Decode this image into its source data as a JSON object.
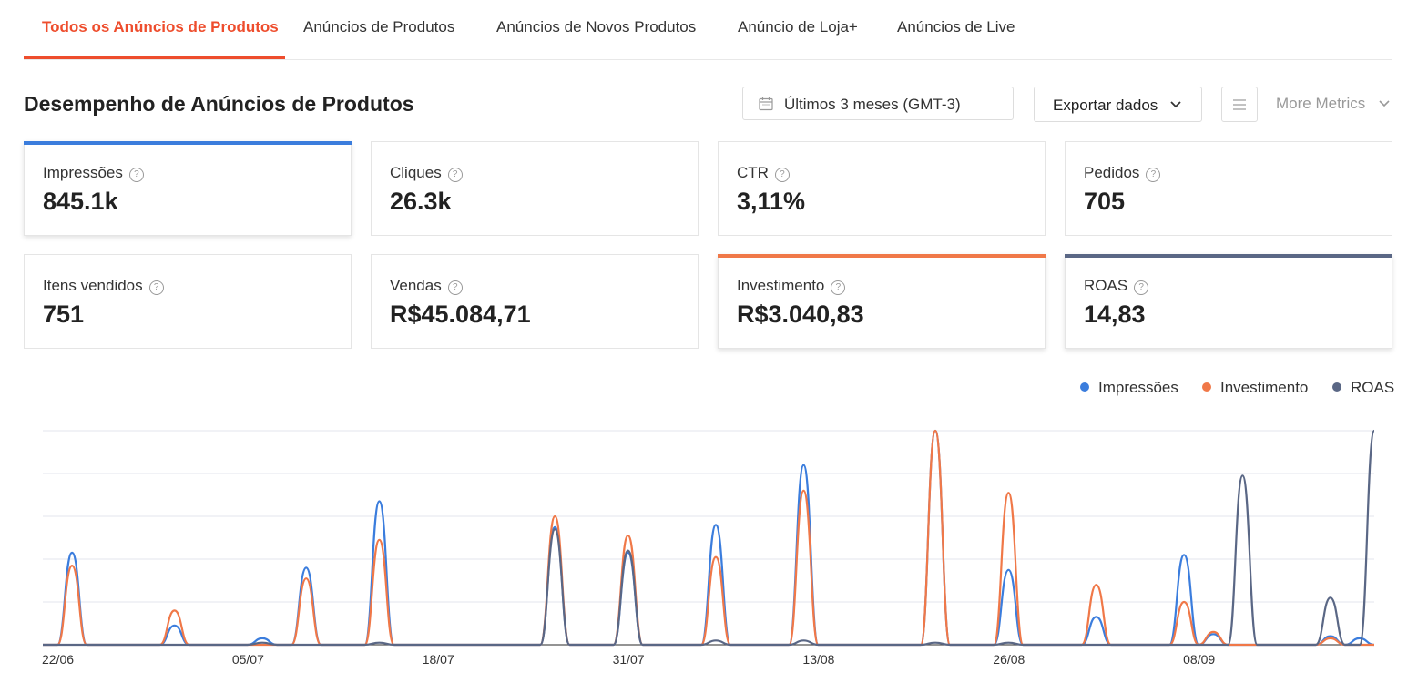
{
  "tabs": [
    {
      "label": "Todos os Anúncios de Produtos",
      "active": true
    },
    {
      "label": "Anúncios de Produtos",
      "active": false
    },
    {
      "label": "Anúncios de Novos Produtos",
      "active": false
    },
    {
      "label": "Anúncio de Loja+",
      "active": false
    },
    {
      "label": "Anúncios de Live",
      "active": false
    }
  ],
  "section": {
    "title": "Desempenho de Anúncios de Produtos",
    "date_range": "Últimos 3 meses (GMT-3)",
    "export_label": "Exportar dados",
    "more_metrics_label": "More Metrics"
  },
  "metrics": [
    {
      "label": "Impressões",
      "value": "845.1k",
      "selected": true,
      "color": "#3b7ddd"
    },
    {
      "label": "Cliques",
      "value": "26.3k",
      "selected": false
    },
    {
      "label": "CTR",
      "value": "3,11%",
      "selected": false
    },
    {
      "label": "Pedidos",
      "value": "705",
      "selected": false
    },
    {
      "label": "Itens vendidos",
      "value": "751",
      "selected": false
    },
    {
      "label": "Vendas",
      "value": "R$45.084,71",
      "selected": false
    },
    {
      "label": "Investimento",
      "value": "R$3.040,83",
      "selected": true,
      "color": "#f07848"
    },
    {
      "label": "ROAS",
      "value": "14,83",
      "selected": true,
      "color": "#5a6785"
    }
  ],
  "legend": [
    {
      "name": "Impressões",
      "color": "#3b7ddd"
    },
    {
      "name": "Investimento",
      "color": "#f07848"
    },
    {
      "name": "ROAS",
      "color": "#5a6785"
    }
  ],
  "chart_data": {
    "type": "line",
    "start_date": "22/06",
    "x_ticks": [
      "22/06",
      "05/07",
      "18/07",
      "31/07",
      "13/08",
      "26/08",
      "08/09"
    ],
    "tick_day_index": [
      0,
      13,
      26,
      39,
      52,
      65,
      78
    ],
    "days": 92,
    "y_normalized": true,
    "gridlines": 5,
    "series": [
      {
        "name": "Impressões",
        "color": "#3b7ddd",
        "points": [
          [
            2,
            0.43
          ],
          [
            9,
            0.09
          ],
          [
            15,
            0.03
          ],
          [
            18,
            0.36
          ],
          [
            23,
            0.67
          ],
          [
            35,
            0.55
          ],
          [
            40,
            0.43
          ],
          [
            46,
            0.56
          ],
          [
            52,
            0.84
          ],
          [
            61,
            1.0
          ],
          [
            66,
            0.35
          ],
          [
            72,
            0.13
          ],
          [
            78,
            0.42
          ],
          [
            80,
            0.05
          ],
          [
            88,
            0.04
          ],
          [
            90,
            0.03
          ]
        ]
      },
      {
        "name": "Investimento",
        "color": "#f07848",
        "points": [
          [
            2,
            0.37
          ],
          [
            9,
            0.16
          ],
          [
            18,
            0.31
          ],
          [
            23,
            0.49
          ],
          [
            35,
            0.6
          ],
          [
            40,
            0.51
          ],
          [
            46,
            0.41
          ],
          [
            52,
            0.72
          ],
          [
            61,
            1.0
          ],
          [
            66,
            0.71
          ],
          [
            72,
            0.28
          ],
          [
            78,
            0.2
          ],
          [
            80,
            0.06
          ],
          [
            88,
            0.03
          ]
        ]
      },
      {
        "name": "ROAS",
        "color": "#5a6785",
        "points": [
          [
            2,
            0.0
          ],
          [
            15,
            0.01
          ],
          [
            23,
            0.01
          ],
          [
            35,
            0.54
          ],
          [
            40,
            0.44
          ],
          [
            46,
            0.02
          ],
          [
            52,
            0.02
          ],
          [
            61,
            0.01
          ],
          [
            66,
            0.01
          ],
          [
            82,
            0.79
          ],
          [
            88,
            0.22
          ],
          [
            91,
            1.0
          ]
        ]
      }
    ]
  }
}
